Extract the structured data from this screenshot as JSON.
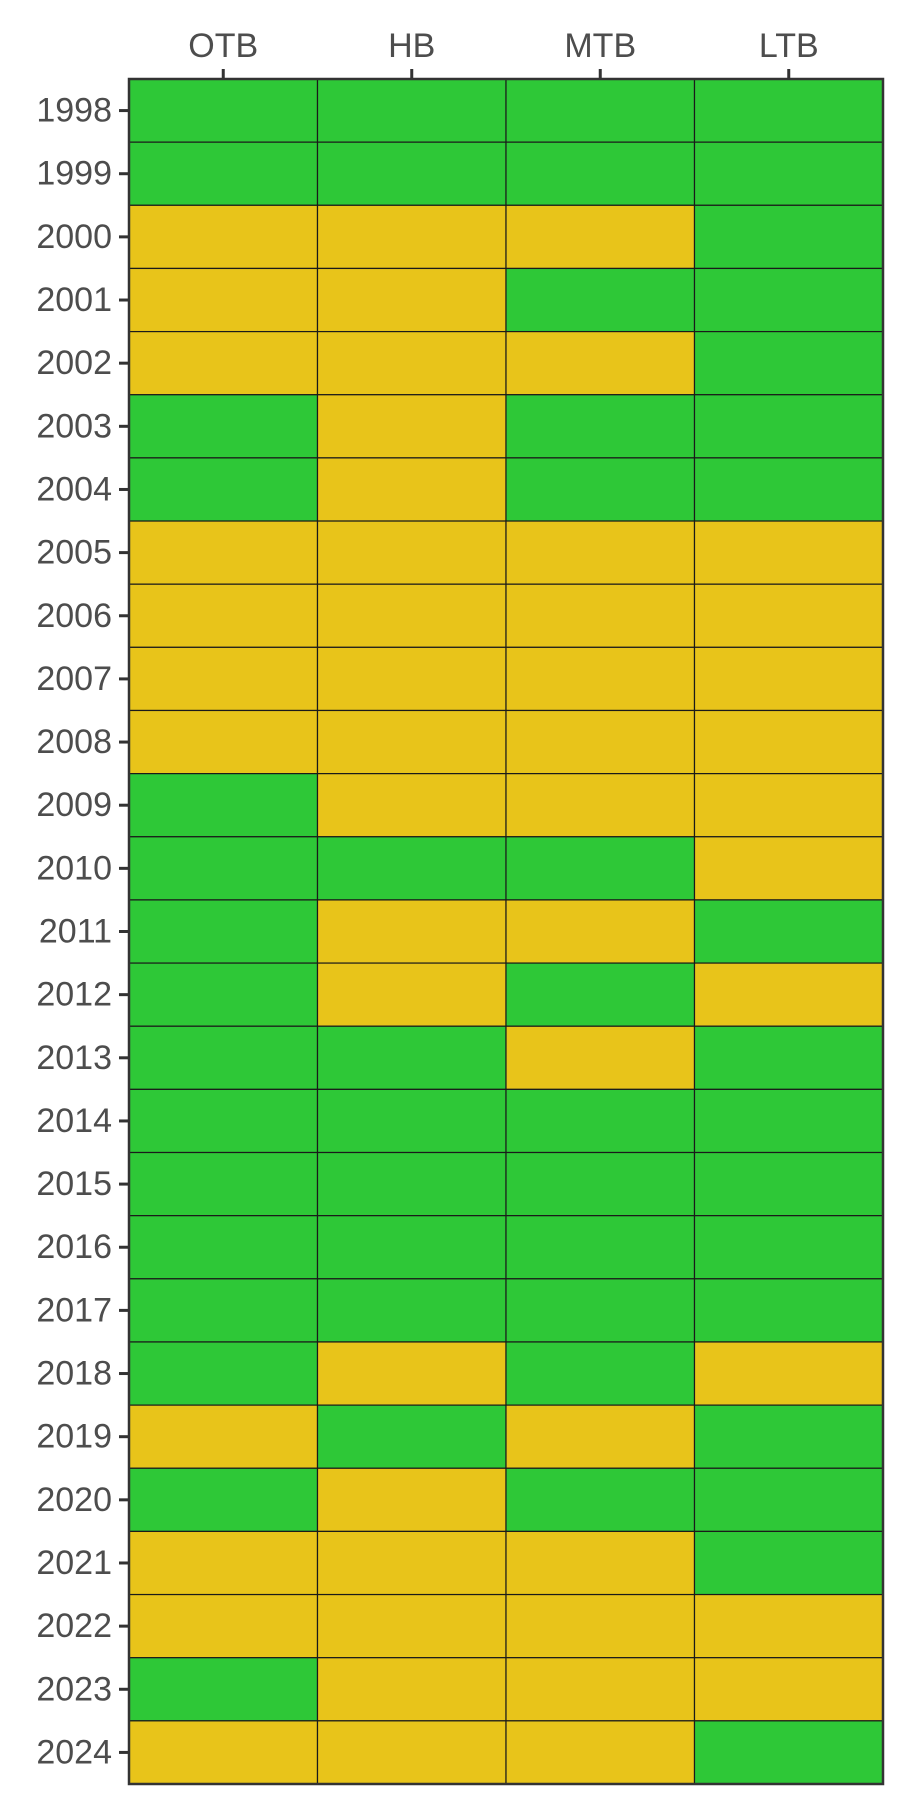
{
  "chart_data": {
    "type": "heatmap",
    "title": "",
    "xlabel": "",
    "ylabel": "",
    "x_categories": [
      "OTB",
      "HB",
      "MTB",
      "LTB"
    ],
    "y_categories": [
      "1998",
      "1999",
      "2000",
      "2001",
      "2002",
      "2003",
      "2004",
      "2005",
      "2006",
      "2007",
      "2008",
      "2009",
      "2010",
      "2011",
      "2012",
      "2013",
      "2014",
      "2015",
      "2016",
      "2017",
      "2018",
      "2019",
      "2020",
      "2021",
      "2022",
      "2023",
      "2024"
    ],
    "x_axis_position": "top",
    "legend": "none",
    "grid": false,
    "status_colors": {
      "green": "#2ec837",
      "yellow": "#e8c41a"
    },
    "values": [
      [
        "green",
        "green",
        "green",
        "green"
      ],
      [
        "green",
        "green",
        "green",
        "green"
      ],
      [
        "yellow",
        "yellow",
        "yellow",
        "green"
      ],
      [
        "yellow",
        "yellow",
        "green",
        "green"
      ],
      [
        "yellow",
        "yellow",
        "yellow",
        "green"
      ],
      [
        "green",
        "yellow",
        "green",
        "green"
      ],
      [
        "green",
        "yellow",
        "green",
        "green"
      ],
      [
        "yellow",
        "yellow",
        "yellow",
        "yellow"
      ],
      [
        "yellow",
        "yellow",
        "yellow",
        "yellow"
      ],
      [
        "yellow",
        "yellow",
        "yellow",
        "yellow"
      ],
      [
        "yellow",
        "yellow",
        "yellow",
        "yellow"
      ],
      [
        "green",
        "yellow",
        "yellow",
        "yellow"
      ],
      [
        "green",
        "green",
        "green",
        "yellow"
      ],
      [
        "green",
        "yellow",
        "yellow",
        "green"
      ],
      [
        "green",
        "yellow",
        "green",
        "yellow"
      ],
      [
        "green",
        "green",
        "yellow",
        "green"
      ],
      [
        "green",
        "green",
        "green",
        "green"
      ],
      [
        "green",
        "green",
        "green",
        "green"
      ],
      [
        "green",
        "green",
        "green",
        "green"
      ],
      [
        "green",
        "green",
        "green",
        "green"
      ],
      [
        "green",
        "yellow",
        "green",
        "yellow"
      ],
      [
        "yellow",
        "green",
        "yellow",
        "green"
      ],
      [
        "green",
        "yellow",
        "green",
        "green"
      ],
      [
        "yellow",
        "yellow",
        "yellow",
        "green"
      ],
      [
        "yellow",
        "yellow",
        "yellow",
        "yellow"
      ],
      [
        "green",
        "yellow",
        "yellow",
        "yellow"
      ],
      [
        "yellow",
        "yellow",
        "yellow",
        "green"
      ]
    ]
  }
}
